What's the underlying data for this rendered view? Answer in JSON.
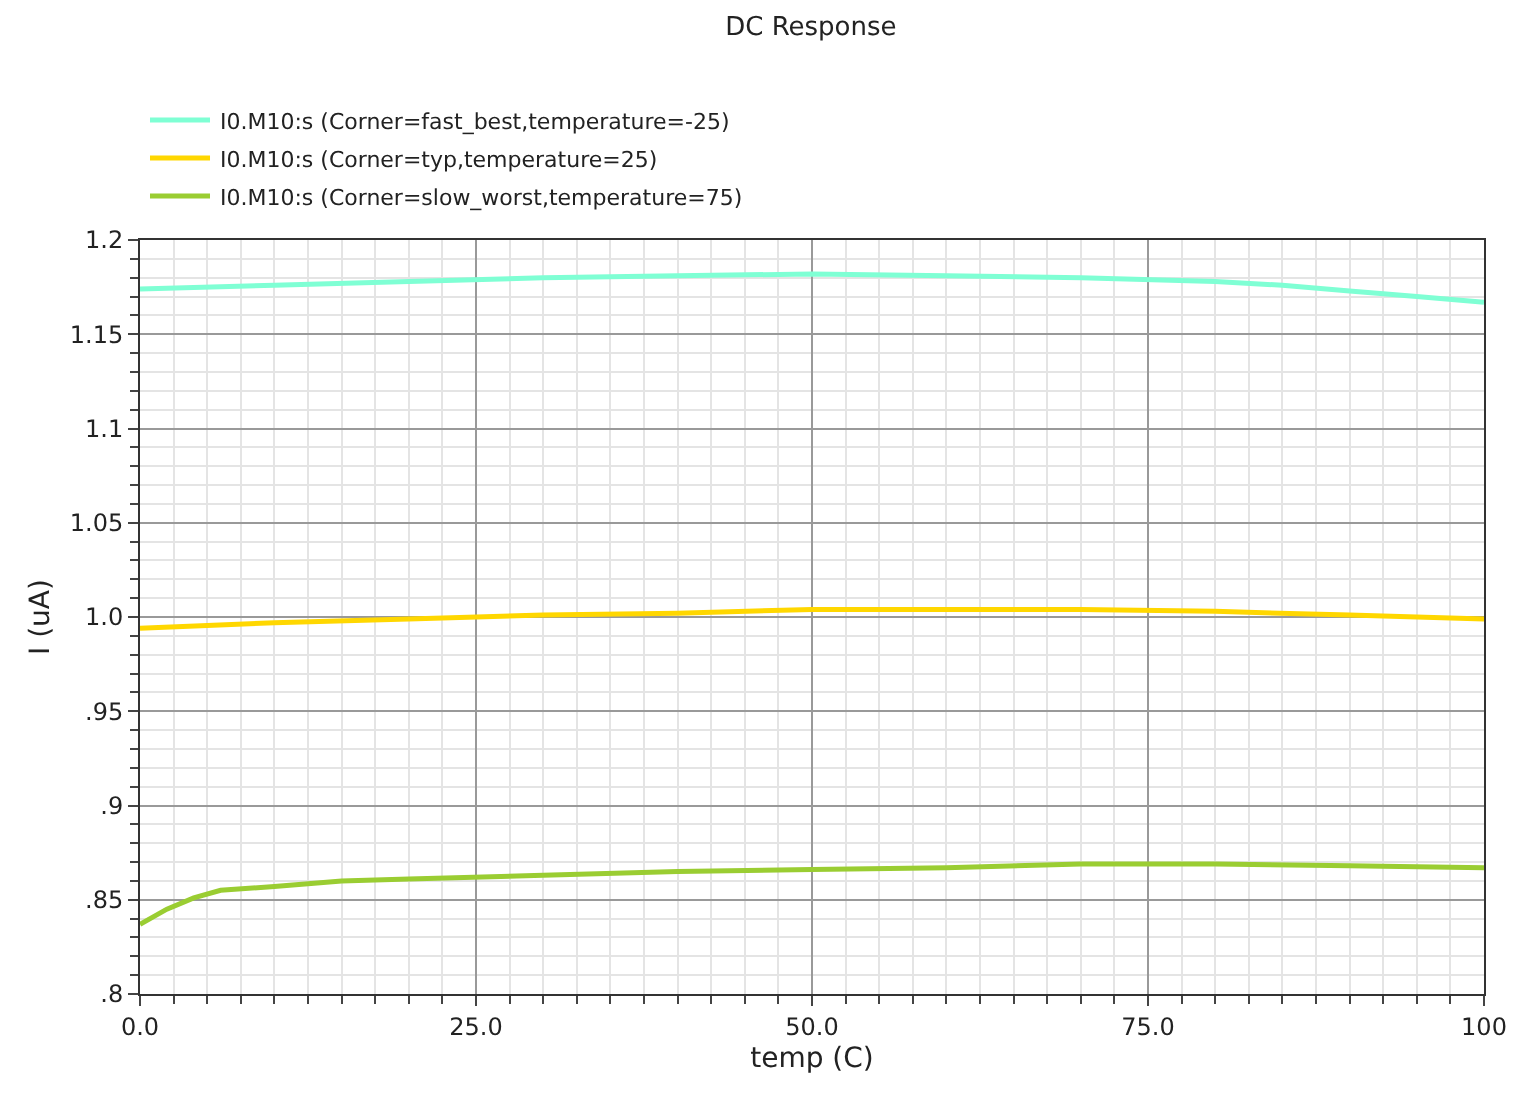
{
  "chart_data": {
    "type": "line",
    "title": "DC Response",
    "xlabel": "temp (C)",
    "ylabel": "I (uA)",
    "xlim": [
      0,
      100
    ],
    "xticks": [
      {
        "value": 0,
        "label": "0.0"
      },
      {
        "value": 25,
        "label": "25.0"
      },
      {
        "value": 50,
        "label": "50.0"
      },
      {
        "value": 75,
        "label": "75.0"
      },
      100
    ],
    "ylim": [
      0.8,
      1.2
    ],
    "yticks": [
      {
        "value": 0.8,
        "label": ".8"
      },
      {
        "value": 0.85,
        "label": ".85"
      },
      {
        "value": 0.9,
        "label": ".9"
      },
      {
        "value": 0.95,
        "label": ".95"
      },
      {
        "value": 1.0,
        "label": "1.0"
      },
      1.05,
      1.1,
      1.15,
      1.2
    ],
    "grid": true,
    "legend": "top left",
    "marker": "none",
    "line_style": "solid",
    "series": [
      {
        "name": "I0.M10:s (Corner=fast_best,temperature=-25)",
        "color": "#7fffd4",
        "x": [
          0,
          10,
          20,
          30,
          40,
          50,
          60,
          70,
          80,
          85,
          90,
          95,
          100
        ],
        "values": [
          1.174,
          1.176,
          1.178,
          1.18,
          1.181,
          1.182,
          1.181,
          1.18,
          1.178,
          1.176,
          1.173,
          1.17,
          1.167
        ]
      },
      {
        "name": "I0.M10:s (Corner=typ,temperature=25)",
        "color": "#ffd700",
        "x": [
          0,
          10,
          20,
          30,
          40,
          50,
          60,
          70,
          80,
          90,
          100
        ],
        "values": [
          0.994,
          0.997,
          0.999,
          1.001,
          1.002,
          1.004,
          1.004,
          1.004,
          1.003,
          1.001,
          0.999
        ]
      },
      {
        "name": "I0.M10:s (Corner=slow_worst,temperature=75)",
        "color": "#9acd32",
        "x": [
          0,
          2,
          4,
          6,
          10,
          15,
          20,
          30,
          40,
          50,
          60,
          70,
          80,
          90,
          100
        ],
        "values": [
          0.837,
          0.845,
          0.851,
          0.855,
          0.857,
          0.86,
          0.861,
          0.863,
          0.865,
          0.866,
          0.867,
          0.869,
          0.869,
          0.868,
          0.867
        ]
      }
    ]
  }
}
